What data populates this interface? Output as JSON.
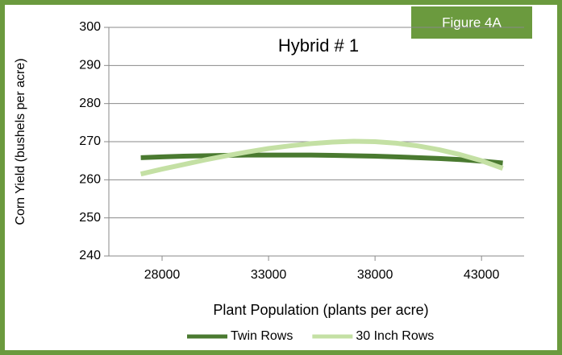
{
  "chart_data": {
    "type": "line",
    "title": "Hybrid # 1",
    "figure_label": "Figure 4A",
    "x_label": "Plant Population  (plants per acre)",
    "y_label": "Corn Yield (bushels per acre)",
    "x": [
      27000,
      28000,
      29000,
      30000,
      31000,
      32000,
      33000,
      34000,
      35000,
      36000,
      37000,
      38000,
      39000,
      40000,
      41000,
      42000,
      43000,
      44000
    ],
    "series": [
      {
        "name": "Twin Rows",
        "color": "#4a7a30",
        "values": [
          265.8,
          266.0,
          266.2,
          266.3,
          266.4,
          266.5,
          266.5,
          266.5,
          266.5,
          266.4,
          266.3,
          266.2,
          266.0,
          265.8,
          265.6,
          265.3,
          264.9,
          264.4
        ]
      },
      {
        "name": "30 Inch Rows",
        "color": "#c4e0a4",
        "values": [
          261.5,
          262.8,
          264.0,
          265.2,
          266.3,
          267.3,
          268.2,
          268.9,
          269.5,
          269.9,
          270.1,
          270.0,
          269.6,
          268.9,
          267.9,
          266.6,
          265.0,
          263.0
        ]
      }
    ],
    "xlim": [
      25500,
      45000
    ],
    "xticks": [
      28000,
      33000,
      38000,
      43000
    ],
    "ylim": [
      240,
      300
    ],
    "yticks": [
      240,
      250,
      260,
      270,
      280,
      290,
      300
    ],
    "grid": true,
    "legend": "bottom"
  }
}
